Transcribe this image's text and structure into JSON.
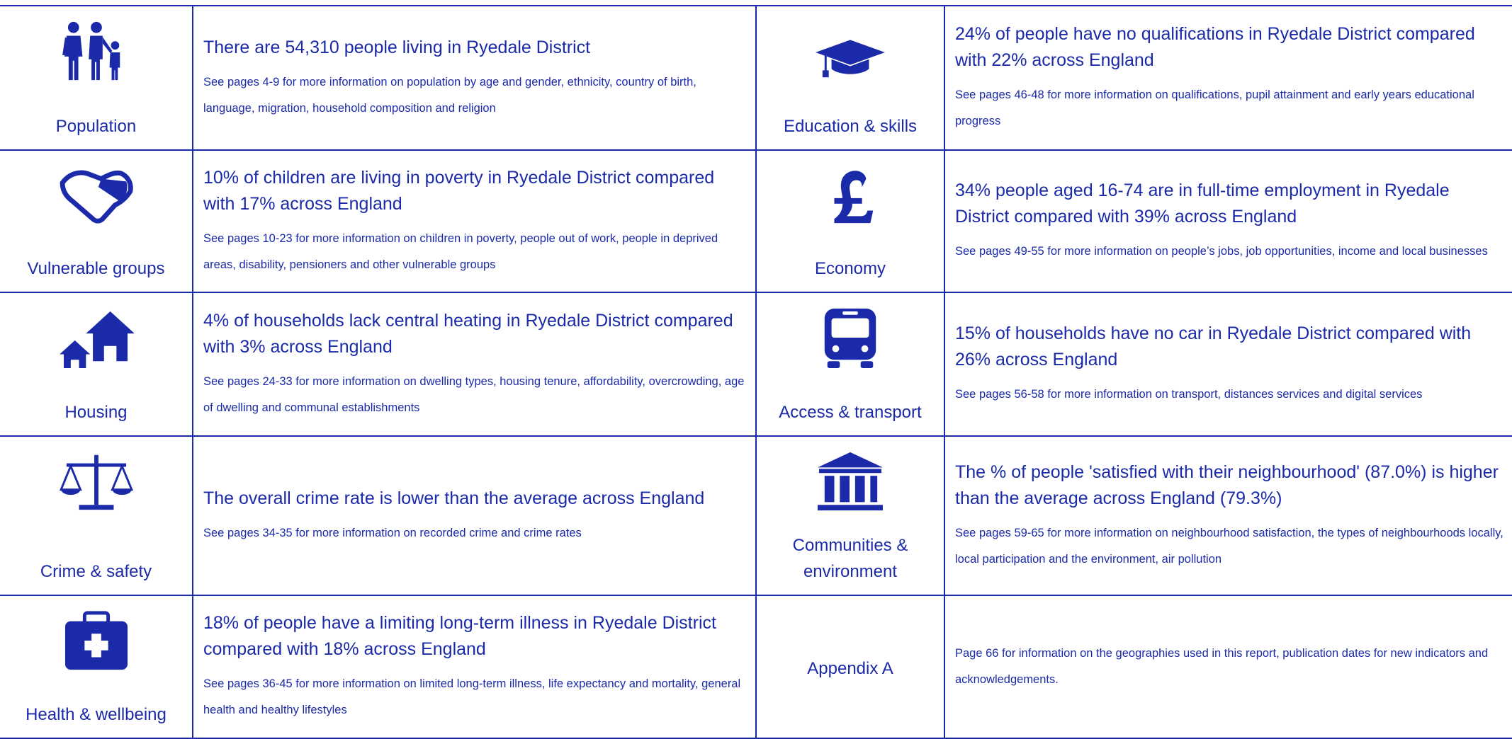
{
  "rows": [
    {
      "left": {
        "label": "Population",
        "headline": "There are 54,310 people living in Ryedale District",
        "detail": "See pages 4-9 for more information on population by age and gender, ethnicity, country of birth, language, migration, household composition and religion"
      },
      "right": {
        "label": "Education & skills",
        "headline": "24% of people have no qualifications in Ryedale District compared with 22% across England",
        "detail": "See pages 46-48 for more information on qualifications, pupil attainment and early years educational progress"
      }
    },
    {
      "left": {
        "label": "Vulnerable groups",
        "headline": "10% of children are living in poverty in Ryedale District compared with 17% across England",
        "detail": "See pages 10-23 for more information on children in poverty, people out of work, people in deprived areas, disability, pensioners and other vulnerable groups"
      },
      "right": {
        "label": "Economy",
        "headline": "34% people aged 16-74 are in full-time employment in Ryedale District compared with 39% across England",
        "detail": "See pages 49-55 for more information on people’s jobs, job opportunities, income and local businesses"
      }
    },
    {
      "left": {
        "label": "Housing",
        "headline": "4% of households lack central heating in Ryedale District compared with 3% across England",
        "detail": "See pages 24-33 for more information on dwelling types, housing tenure, affordability, overcrowding, age of dwelling and communal establishments"
      },
      "right": {
        "label": "Access & transport",
        "headline": "15% of households have no car in Ryedale District compared with 26% across England",
        "detail": "See pages 56-58 for more information on transport, distances services and digital services"
      }
    },
    {
      "left": {
        "label": "Crime & safety",
        "headline": "The overall crime rate is lower than  the average across England",
        "detail": "See pages 34-35 for more information on recorded crime and crime rates"
      },
      "right": {
        "label": "Communities & environment",
        "headline": "The % of people 'satisfied with their neighbourhood' (87.0%) is higher than the average across England (79.3%)",
        "detail": "See pages 59-65 for more information on neighbourhood satisfaction, the types of neighbourhoods locally, local participation and the environment, air pollution"
      }
    },
    {
      "left": {
        "label": "Health & wellbeing",
        "headline": "18% of people have a limiting long-term illness in Ryedale District compared with 18% across England",
        "detail": "See pages 36-45 for more information on limited long-term illness, life expectancy and mortality, general health and healthy lifestyles"
      },
      "right": {
        "label": "Appendix A",
        "headline": null,
        "detail": "Page 66 for information on the geographies used in this report, publication dates for new indicators and acknowledgements."
      }
    }
  ]
}
